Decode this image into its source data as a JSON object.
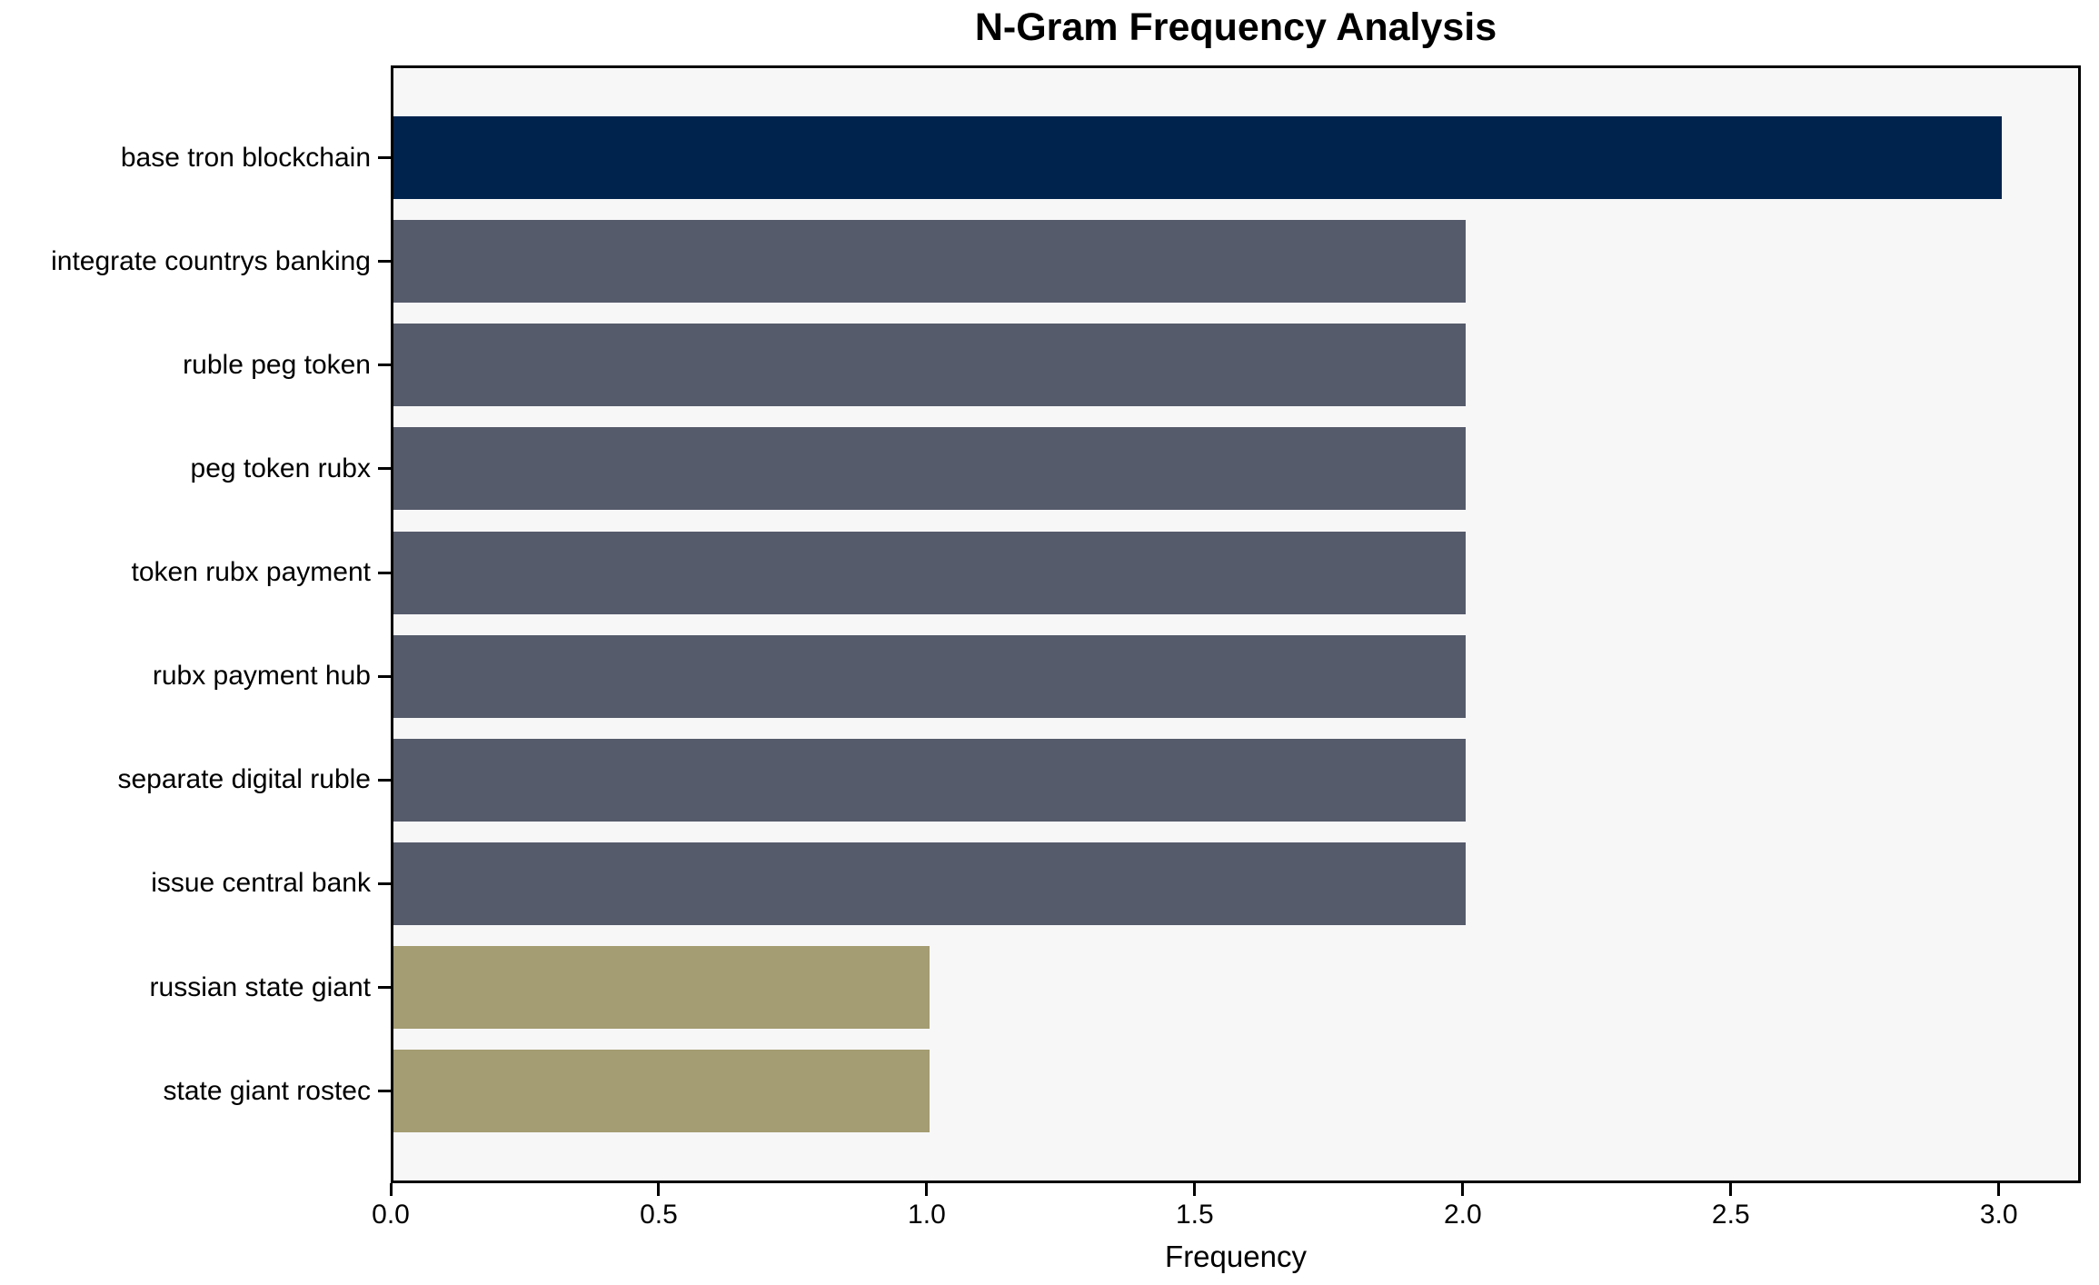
{
  "chart_data": {
    "type": "bar",
    "orientation": "horizontal",
    "title": "N-Gram Frequency Analysis",
    "xlabel": "Frequency",
    "ylabel": "",
    "categories": [
      "base tron blockchain",
      "integrate countrys banking",
      "ruble peg token",
      "peg token rubx",
      "token rubx payment",
      "rubx payment hub",
      "separate digital ruble",
      "issue central bank",
      "russian state giant",
      "state giant rostec"
    ],
    "values": [
      3,
      2,
      2,
      2,
      2,
      2,
      2,
      2,
      1,
      1
    ],
    "bar_colors": [
      "#00234e",
      "#565b6b",
      "#565b6b",
      "#565b6b",
      "#565b6b",
      "#565b6b",
      "#565b6b",
      "#565b6b",
      "#a49c72",
      "#a49c72"
    ],
    "xlim": [
      0,
      3.153
    ],
    "xticks": [
      0.0,
      0.5,
      1.0,
      1.5,
      2.0,
      2.5,
      3.0
    ],
    "xtick_labels": [
      "0.0",
      "0.5",
      "1.0",
      "1.5",
      "2.0",
      "2.5",
      "3.0"
    ],
    "grid": false,
    "legend": null,
    "colors": {
      "plot_background": "#f7f7f8",
      "page_background": "#ffffff",
      "spine": "#000000",
      "text": "#000000",
      "highlight_navy": "#00234e",
      "mid_slate": "#565b6b",
      "low_olive": "#a49c72"
    }
  }
}
